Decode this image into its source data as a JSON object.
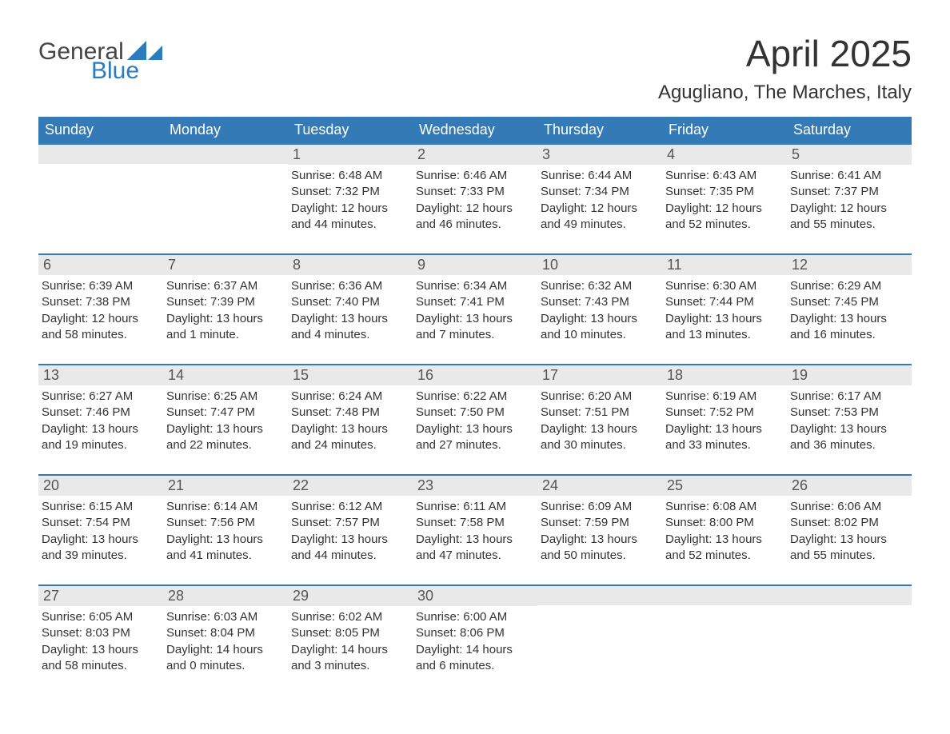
{
  "logo": {
    "text1": "General",
    "text2": "Blue",
    "color1": "#444444",
    "color2": "#2b7bbf",
    "tri_color": "#2b7bbf"
  },
  "title": "April 2025",
  "location": "Agugliano, The Marches, Italy",
  "colors": {
    "header_bg": "#337ab7",
    "header_text": "#ffffff",
    "row_border": "#337ab7",
    "daynum_bg": "#e9e9e9",
    "daynum_text": "#555555",
    "body_text": "#333333",
    "page_bg": "#ffffff"
  },
  "typography": {
    "title_fontsize": 46,
    "location_fontsize": 24,
    "dow_fontsize": 18,
    "daynum_fontsize": 18,
    "body_fontsize": 15,
    "font_family": "Arial"
  },
  "days_of_week": [
    "Sunday",
    "Monday",
    "Tuesday",
    "Wednesday",
    "Thursday",
    "Friday",
    "Saturday"
  ],
  "weeks": [
    [
      {
        "day": "",
        "sunrise": "",
        "sunset": "",
        "daylight1": "",
        "daylight2": ""
      },
      {
        "day": "",
        "sunrise": "",
        "sunset": "",
        "daylight1": "",
        "daylight2": ""
      },
      {
        "day": "1",
        "sunrise": "Sunrise: 6:48 AM",
        "sunset": "Sunset: 7:32 PM",
        "daylight1": "Daylight: 12 hours",
        "daylight2": "and 44 minutes."
      },
      {
        "day": "2",
        "sunrise": "Sunrise: 6:46 AM",
        "sunset": "Sunset: 7:33 PM",
        "daylight1": "Daylight: 12 hours",
        "daylight2": "and 46 minutes."
      },
      {
        "day": "3",
        "sunrise": "Sunrise: 6:44 AM",
        "sunset": "Sunset: 7:34 PM",
        "daylight1": "Daylight: 12 hours",
        "daylight2": "and 49 minutes."
      },
      {
        "day": "4",
        "sunrise": "Sunrise: 6:43 AM",
        "sunset": "Sunset: 7:35 PM",
        "daylight1": "Daylight: 12 hours",
        "daylight2": "and 52 minutes."
      },
      {
        "day": "5",
        "sunrise": "Sunrise: 6:41 AM",
        "sunset": "Sunset: 7:37 PM",
        "daylight1": "Daylight: 12 hours",
        "daylight2": "and 55 minutes."
      }
    ],
    [
      {
        "day": "6",
        "sunrise": "Sunrise: 6:39 AM",
        "sunset": "Sunset: 7:38 PM",
        "daylight1": "Daylight: 12 hours",
        "daylight2": "and 58 minutes."
      },
      {
        "day": "7",
        "sunrise": "Sunrise: 6:37 AM",
        "sunset": "Sunset: 7:39 PM",
        "daylight1": "Daylight: 13 hours",
        "daylight2": "and 1 minute."
      },
      {
        "day": "8",
        "sunrise": "Sunrise: 6:36 AM",
        "sunset": "Sunset: 7:40 PM",
        "daylight1": "Daylight: 13 hours",
        "daylight2": "and 4 minutes."
      },
      {
        "day": "9",
        "sunrise": "Sunrise: 6:34 AM",
        "sunset": "Sunset: 7:41 PM",
        "daylight1": "Daylight: 13 hours",
        "daylight2": "and 7 minutes."
      },
      {
        "day": "10",
        "sunrise": "Sunrise: 6:32 AM",
        "sunset": "Sunset: 7:43 PM",
        "daylight1": "Daylight: 13 hours",
        "daylight2": "and 10 minutes."
      },
      {
        "day": "11",
        "sunrise": "Sunrise: 6:30 AM",
        "sunset": "Sunset: 7:44 PM",
        "daylight1": "Daylight: 13 hours",
        "daylight2": "and 13 minutes."
      },
      {
        "day": "12",
        "sunrise": "Sunrise: 6:29 AM",
        "sunset": "Sunset: 7:45 PM",
        "daylight1": "Daylight: 13 hours",
        "daylight2": "and 16 minutes."
      }
    ],
    [
      {
        "day": "13",
        "sunrise": "Sunrise: 6:27 AM",
        "sunset": "Sunset: 7:46 PM",
        "daylight1": "Daylight: 13 hours",
        "daylight2": "and 19 minutes."
      },
      {
        "day": "14",
        "sunrise": "Sunrise: 6:25 AM",
        "sunset": "Sunset: 7:47 PM",
        "daylight1": "Daylight: 13 hours",
        "daylight2": "and 22 minutes."
      },
      {
        "day": "15",
        "sunrise": "Sunrise: 6:24 AM",
        "sunset": "Sunset: 7:48 PM",
        "daylight1": "Daylight: 13 hours",
        "daylight2": "and 24 minutes."
      },
      {
        "day": "16",
        "sunrise": "Sunrise: 6:22 AM",
        "sunset": "Sunset: 7:50 PM",
        "daylight1": "Daylight: 13 hours",
        "daylight2": "and 27 minutes."
      },
      {
        "day": "17",
        "sunrise": "Sunrise: 6:20 AM",
        "sunset": "Sunset: 7:51 PM",
        "daylight1": "Daylight: 13 hours",
        "daylight2": "and 30 minutes."
      },
      {
        "day": "18",
        "sunrise": "Sunrise: 6:19 AM",
        "sunset": "Sunset: 7:52 PM",
        "daylight1": "Daylight: 13 hours",
        "daylight2": "and 33 minutes."
      },
      {
        "day": "19",
        "sunrise": "Sunrise: 6:17 AM",
        "sunset": "Sunset: 7:53 PM",
        "daylight1": "Daylight: 13 hours",
        "daylight2": "and 36 minutes."
      }
    ],
    [
      {
        "day": "20",
        "sunrise": "Sunrise: 6:15 AM",
        "sunset": "Sunset: 7:54 PM",
        "daylight1": "Daylight: 13 hours",
        "daylight2": "and 39 minutes."
      },
      {
        "day": "21",
        "sunrise": "Sunrise: 6:14 AM",
        "sunset": "Sunset: 7:56 PM",
        "daylight1": "Daylight: 13 hours",
        "daylight2": "and 41 minutes."
      },
      {
        "day": "22",
        "sunrise": "Sunrise: 6:12 AM",
        "sunset": "Sunset: 7:57 PM",
        "daylight1": "Daylight: 13 hours",
        "daylight2": "and 44 minutes."
      },
      {
        "day": "23",
        "sunrise": "Sunrise: 6:11 AM",
        "sunset": "Sunset: 7:58 PM",
        "daylight1": "Daylight: 13 hours",
        "daylight2": "and 47 minutes."
      },
      {
        "day": "24",
        "sunrise": "Sunrise: 6:09 AM",
        "sunset": "Sunset: 7:59 PM",
        "daylight1": "Daylight: 13 hours",
        "daylight2": "and 50 minutes."
      },
      {
        "day": "25",
        "sunrise": "Sunrise: 6:08 AM",
        "sunset": "Sunset: 8:00 PM",
        "daylight1": "Daylight: 13 hours",
        "daylight2": "and 52 minutes."
      },
      {
        "day": "26",
        "sunrise": "Sunrise: 6:06 AM",
        "sunset": "Sunset: 8:02 PM",
        "daylight1": "Daylight: 13 hours",
        "daylight2": "and 55 minutes."
      }
    ],
    [
      {
        "day": "27",
        "sunrise": "Sunrise: 6:05 AM",
        "sunset": "Sunset: 8:03 PM",
        "daylight1": "Daylight: 13 hours",
        "daylight2": "and 58 minutes."
      },
      {
        "day": "28",
        "sunrise": "Sunrise: 6:03 AM",
        "sunset": "Sunset: 8:04 PM",
        "daylight1": "Daylight: 14 hours",
        "daylight2": "and 0 minutes."
      },
      {
        "day": "29",
        "sunrise": "Sunrise: 6:02 AM",
        "sunset": "Sunset: 8:05 PM",
        "daylight1": "Daylight: 14 hours",
        "daylight2": "and 3 minutes."
      },
      {
        "day": "30",
        "sunrise": "Sunrise: 6:00 AM",
        "sunset": "Sunset: 8:06 PM",
        "daylight1": "Daylight: 14 hours",
        "daylight2": "and 6 minutes."
      },
      {
        "day": "",
        "sunrise": "",
        "sunset": "",
        "daylight1": "",
        "daylight2": ""
      },
      {
        "day": "",
        "sunrise": "",
        "sunset": "",
        "daylight1": "",
        "daylight2": ""
      },
      {
        "day": "",
        "sunrise": "",
        "sunset": "",
        "daylight1": "",
        "daylight2": ""
      }
    ]
  ]
}
